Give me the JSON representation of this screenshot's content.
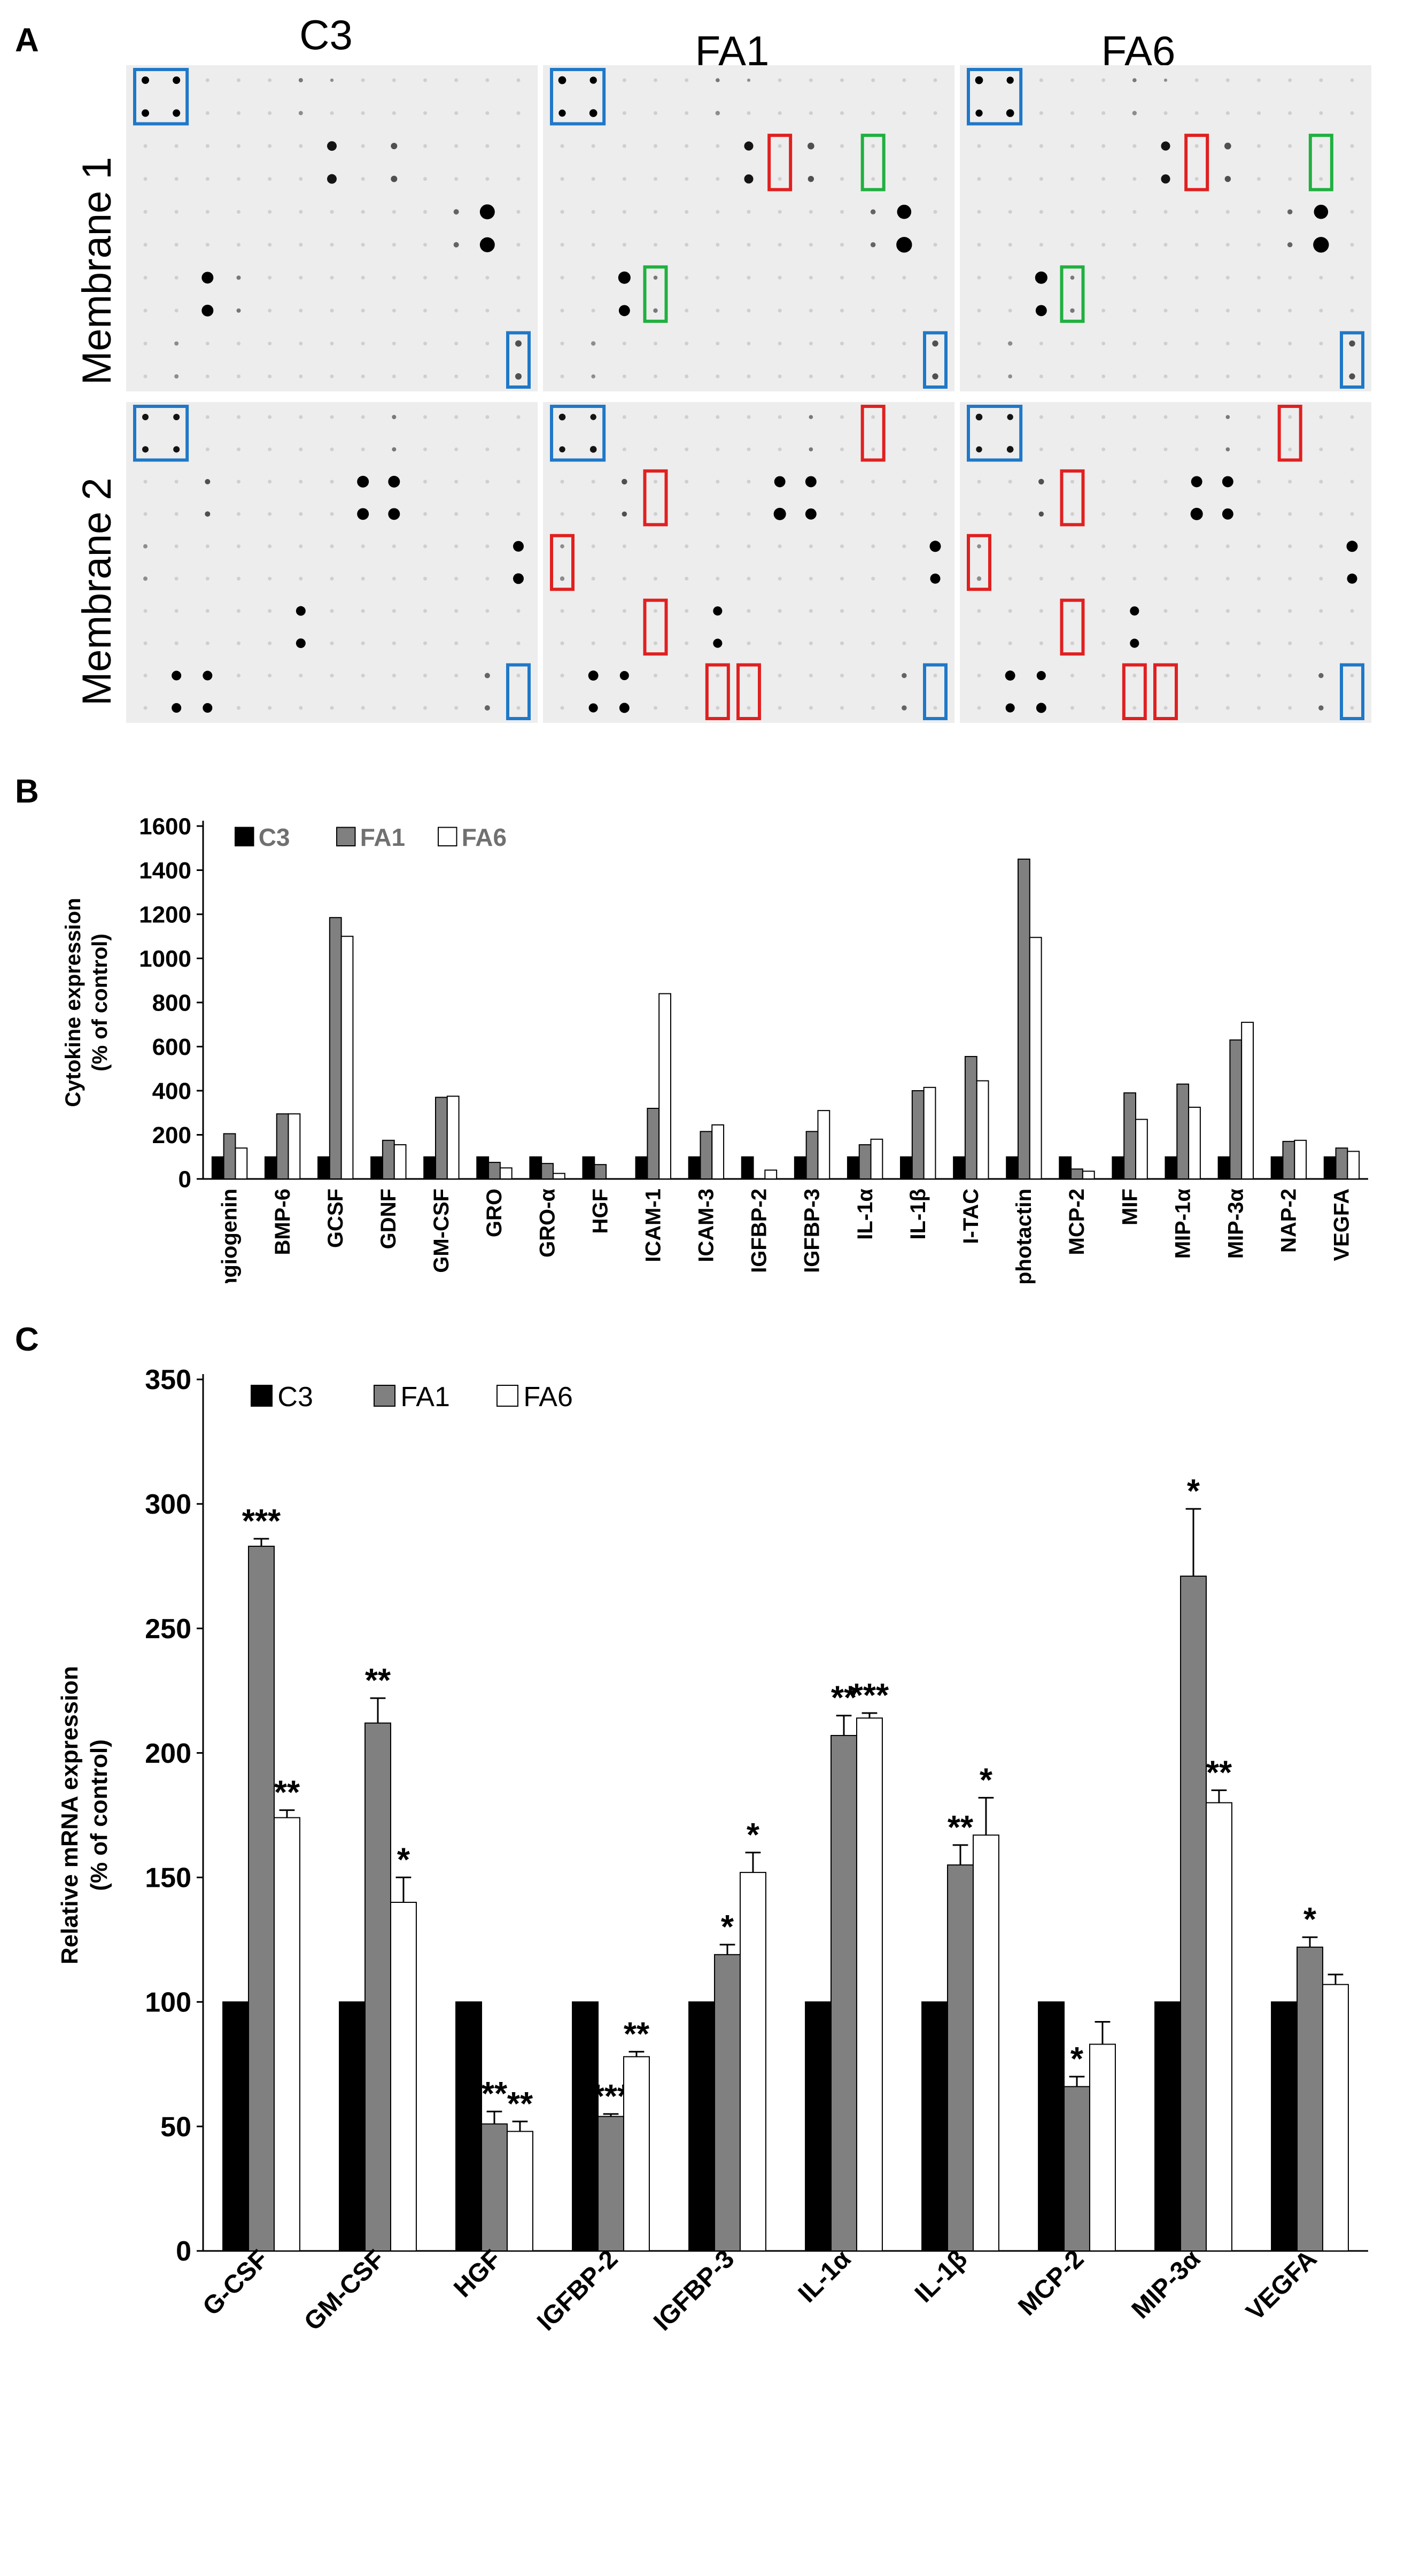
{
  "panel_a": {
    "letter": "A",
    "columns": [
      "C3",
      "FA1",
      "FA6"
    ],
    "rows": [
      "Membrane 1",
      "Membrane 2"
    ],
    "box_colors": {
      "reference": "#1f78c8",
      "increased": "#e02020",
      "decreased": "#20b040"
    }
  },
  "panel_b": {
    "letter": "B"
  },
  "panel_c": {
    "letter": "C"
  },
  "chart_data": [
    {
      "type": "bar",
      "title": "",
      "xlabel": "",
      "ylabel": "Cytokine expression\n(% of control)",
      "ylim": [
        0,
        1600
      ],
      "yticks": [
        0,
        200,
        400,
        600,
        800,
        1000,
        1200,
        1400,
        1600
      ],
      "legend": "top-left",
      "grid": false,
      "categories": [
        "Angiogenin",
        "BMP-6",
        "GCSF",
        "GDNF",
        "GM-CSF",
        "GRO",
        "GRO-α",
        "HGF",
        "ICAM-1",
        "ICAM-3",
        "IGFBP-2",
        "IGFBP-3",
        "IL-1α",
        "IL-1β",
        "I-TAC",
        "Lymphotactin",
        "MCP-2",
        "MIF",
        "MIP-1α",
        "MIP-3α",
        "NAP-2",
        "VEGFA"
      ],
      "series": [
        {
          "name": "C3",
          "color": "#000000",
          "values": [
            100,
            100,
            100,
            100,
            100,
            100,
            100,
            100,
            100,
            100,
            100,
            100,
            100,
            100,
            100,
            100,
            100,
            100,
            100,
            100,
            100,
            100
          ]
        },
        {
          "name": "FA1",
          "color": "#808080",
          "values": [
            205,
            295,
            1185,
            175,
            370,
            75,
            70,
            65,
            320,
            215,
            0,
            215,
            155,
            400,
            555,
            1450,
            45,
            390,
            430,
            630,
            170,
            140
          ]
        },
        {
          "name": "FA6",
          "color": "#ffffff",
          "values": [
            140,
            295,
            1100,
            155,
            375,
            50,
            25,
            0,
            840,
            245,
            40,
            310,
            180,
            415,
            445,
            1095,
            35,
            270,
            325,
            710,
            175,
            125
          ]
        }
      ]
    },
    {
      "type": "bar",
      "title": "",
      "xlabel": "",
      "ylabel": "Relative mRNA expression\n(% of control)",
      "ylim": [
        0,
        350
      ],
      "yticks": [
        0,
        50,
        100,
        150,
        200,
        250,
        300,
        350
      ],
      "legend": "top-left",
      "grid": false,
      "categories": [
        "G-CSF",
        "GM-CSF",
        "HGF",
        "IGFBP-2",
        "IGFBP-3",
        "IL-1α",
        "IL-1β",
        "MCP-2",
        "MIP-3α",
        "VEGFA"
      ],
      "series": [
        {
          "name": "C3",
          "color": "#000000",
          "values": [
            100,
            100,
            100,
            100,
            100,
            100,
            100,
            100,
            100,
            100
          ],
          "errors": [
            0,
            0,
            0,
            0,
            0,
            0,
            0,
            0,
            0,
            0
          ],
          "significance": [
            "",
            "",
            "",
            "",
            "",
            "",
            "",
            "",
            "",
            ""
          ]
        },
        {
          "name": "FA1",
          "color": "#808080",
          "values": [
            283,
            212,
            51,
            54,
            119,
            207,
            155,
            66,
            271,
            122
          ],
          "errors": [
            3,
            10,
            5,
            1,
            4,
            8,
            8,
            4,
            27,
            4
          ],
          "significance": [
            "***",
            "**",
            "**",
            "***",
            "*",
            "**",
            "**",
            "*",
            "*",
            "*"
          ]
        },
        {
          "name": "FA6",
          "color": "#ffffff",
          "values": [
            174,
            140,
            48,
            78,
            152,
            214,
            167,
            83,
            180,
            107
          ],
          "errors": [
            3,
            10,
            4,
            2,
            8,
            2,
            15,
            9,
            5,
            4
          ],
          "significance": [
            "**",
            "*",
            "**",
            "**",
            "*",
            "***",
            "*",
            "",
            "**",
            ""
          ]
        }
      ]
    }
  ]
}
